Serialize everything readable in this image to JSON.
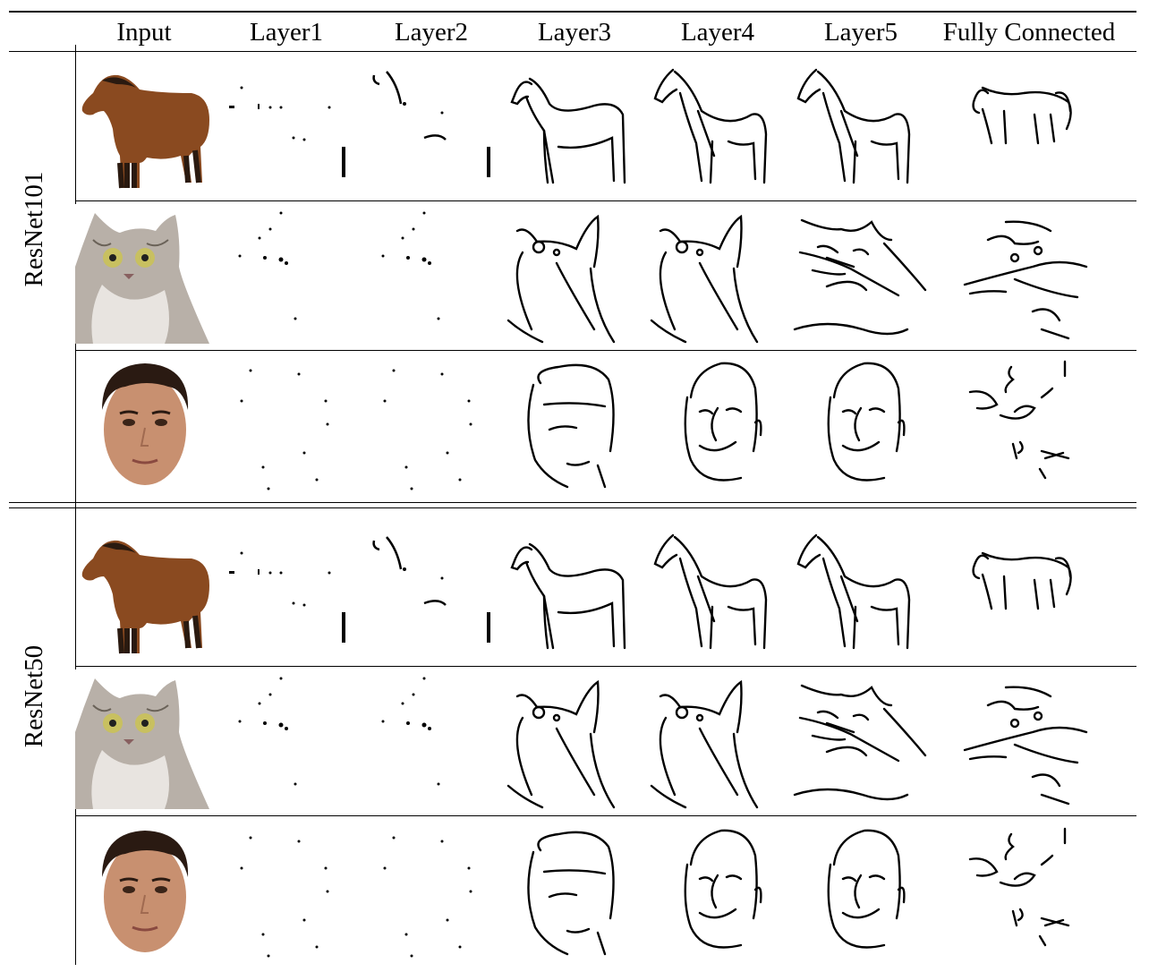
{
  "table": {
    "columns": [
      "Input",
      "Layer1",
      "Layer2",
      "Layer3",
      "Layer4",
      "Layer5",
      "Fully Connected"
    ],
    "groups": [
      {
        "label": "ResNet101",
        "rows": [
          "horse",
          "cat",
          "face"
        ]
      },
      {
        "label": "ResNet50",
        "rows": [
          "horse",
          "cat",
          "face"
        ]
      }
    ]
  },
  "colors": {
    "horse": "#8a4a20",
    "horse_dark": "#2a1a10",
    "cat_fur": "#b8b0a8",
    "cat_eye": "#c8c060",
    "skin": "#c89070",
    "hair": "#2a1a12",
    "ink": "#000000"
  },
  "icons": [
    "horse-photo",
    "cat-photo",
    "face-photo",
    "sketch-strokes"
  ]
}
